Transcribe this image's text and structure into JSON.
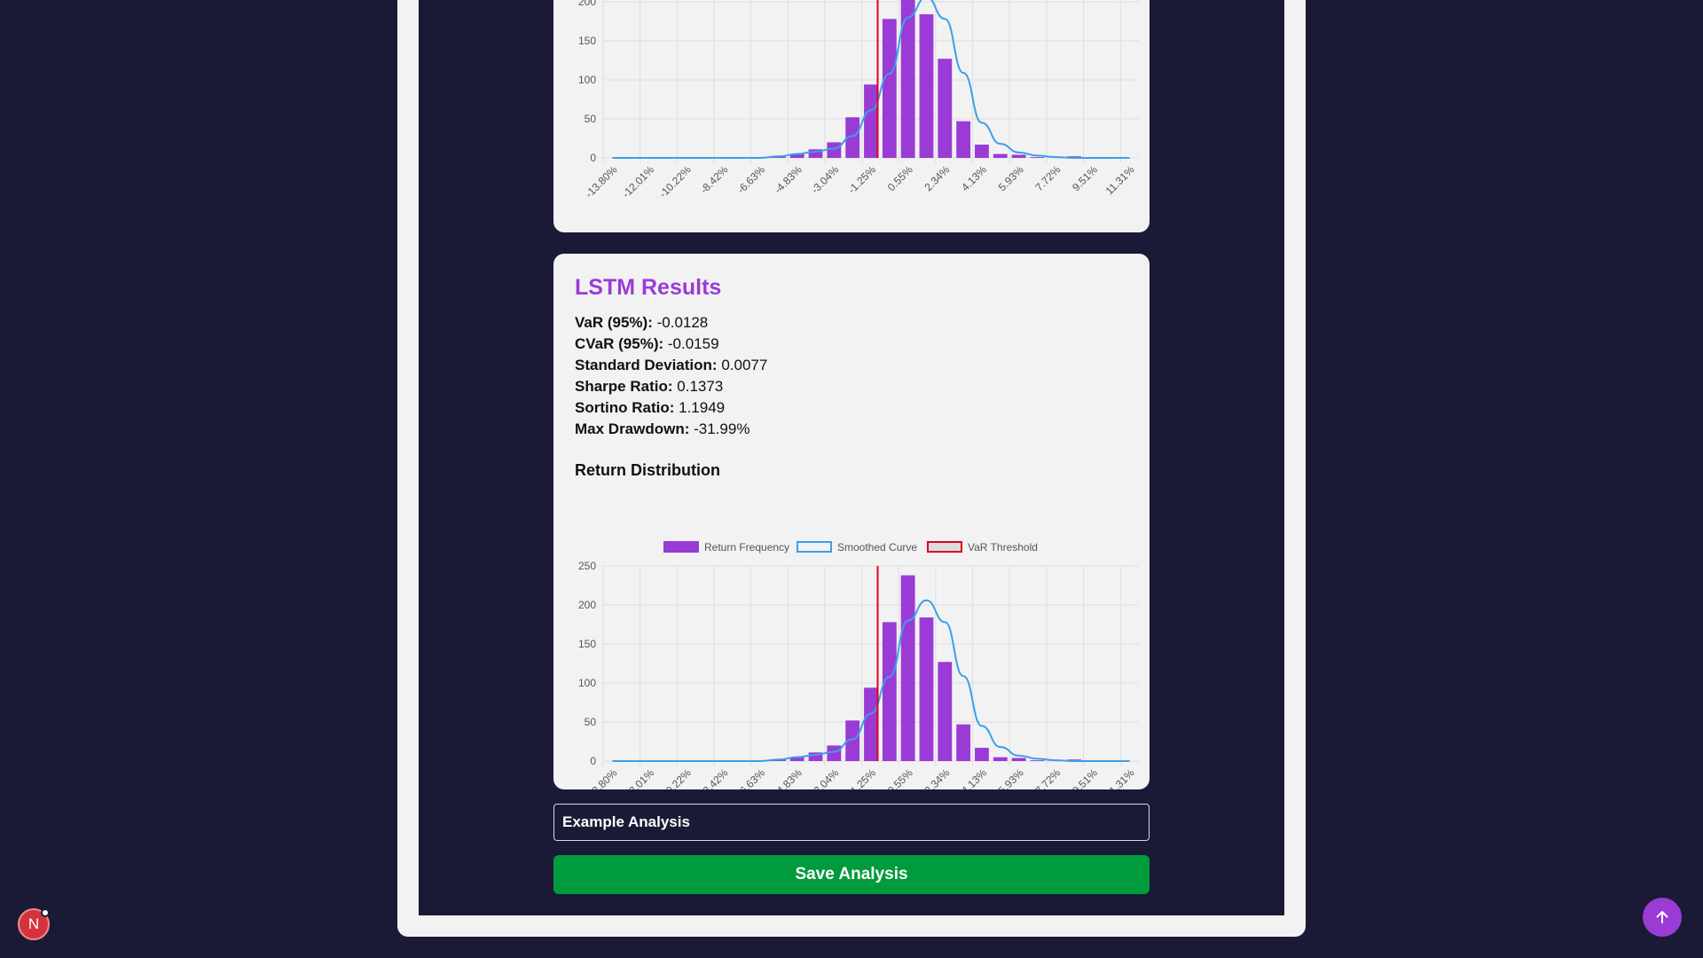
{
  "top_card": {
    "chart_ticks": {
      "y": [
        "200",
        "150",
        "100",
        "50",
        "0"
      ]
    }
  },
  "lstm": {
    "title": "LSTM Results",
    "metrics": [
      {
        "label": "VaR (95%):",
        "value": "-0.0128"
      },
      {
        "label": "CVaR (95%):",
        "value": "-0.0159"
      },
      {
        "label": "Standard Deviation:",
        "value": "0.0077"
      },
      {
        "label": "Sharpe Ratio:",
        "value": "0.1373"
      },
      {
        "label": "Sortino Ratio:",
        "value": "1.1949"
      },
      {
        "label": "Max Drawdown:",
        "value": "-31.99%"
      }
    ],
    "distribution_title": "Return Distribution"
  },
  "chart_data": [
    {
      "type": "bar",
      "categories": [
        "-13.80%",
        "-12.90%",
        "-12.01%",
        "-11.11%",
        "-10.22%",
        "-9.32%",
        "-8.42%",
        "-7.53%",
        "-6.63%",
        "-5.73%",
        "-4.83%",
        "-3.94%",
        "-3.04%",
        "-2.14%",
        "-1.25%",
        "-0.35%",
        "0.55%",
        "1.44%",
        "2.34%",
        "3.24%",
        "4.13%",
        "5.03%",
        "5.93%",
        "6.82%",
        "7.72%",
        "8.62%",
        "9.51%",
        "10.41%",
        "11.31%"
      ],
      "tick_labels": [
        "-13.80%",
        "-12.01%",
        "-10.22%",
        "-8.42%",
        "-6.63%",
        "-4.83%",
        "-3.04%",
        "-1.25%",
        "0.55%",
        "2.34%",
        "4.13%",
        "5.93%",
        "7.72%",
        "9.51%",
        "11.31%"
      ],
      "series": [
        {
          "name": "Return Frequency",
          "type": "bar",
          "values": [
            0,
            0,
            0,
            0,
            0,
            0,
            0,
            0,
            1,
            2,
            5,
            11,
            20,
            52,
            94,
            178,
            238,
            184,
            127,
            47,
            17,
            5,
            4,
            1,
            0,
            2,
            0,
            0,
            0
          ]
        },
        {
          "name": "Smoothed Curve",
          "type": "line",
          "values": [
            0,
            0,
            0,
            0,
            0,
            0,
            0,
            0,
            0,
            2,
            5,
            8,
            12,
            28,
            61,
            108,
            180,
            206,
            178,
            109,
            45,
            18,
            7,
            3,
            1,
            0,
            0,
            0,
            0
          ]
        }
      ],
      "var_threshold": "-1.28%",
      "ylim": [
        0,
        250
      ],
      "yticks": [
        0,
        50,
        100,
        150,
        200,
        250
      ],
      "legend_position": "top",
      "grid": true
    },
    {
      "type": "bar",
      "legend": [
        "Return Frequency",
        "Smoothed Curve",
        "VaR Threshold"
      ],
      "categories": [
        "-13.80%",
        "-12.90%",
        "-12.01%",
        "-11.11%",
        "-10.22%",
        "-9.32%",
        "-8.42%",
        "-7.53%",
        "-6.63%",
        "-5.73%",
        "-4.83%",
        "-3.94%",
        "-3.04%",
        "-2.14%",
        "-1.25%",
        "-0.35%",
        "0.55%",
        "1.44%",
        "2.34%",
        "3.24%",
        "4.13%",
        "5.03%",
        "5.93%",
        "6.82%",
        "7.72%",
        "8.62%",
        "9.51%",
        "10.41%",
        "11.31%"
      ],
      "tick_labels": [
        "-13.80%",
        "-12.01%",
        "-10.22%",
        "-8.42%",
        "-6.63%",
        "-4.83%",
        "-3.04%",
        "-1.25%",
        "0.55%",
        "2.34%",
        "4.13%",
        "5.93%",
        "7.72%",
        "9.51%",
        "11.31%"
      ],
      "series": [
        {
          "name": "Return Frequency",
          "type": "bar",
          "values": [
            0,
            0,
            0,
            0,
            0,
            0,
            0,
            0,
            1,
            2,
            5,
            11,
            20,
            52,
            94,
            178,
            238,
            184,
            127,
            47,
            17,
            5,
            4,
            1,
            0,
            2,
            0,
            0,
            0
          ]
        },
        {
          "name": "Smoothed Curve",
          "type": "line",
          "values": [
            0,
            0,
            0,
            0,
            0,
            0,
            0,
            0,
            0,
            2,
            5,
            8,
            12,
            28,
            61,
            108,
            180,
            206,
            178,
            109,
            45,
            18,
            7,
            3,
            1,
            0,
            0,
            0,
            0
          ]
        }
      ],
      "var_threshold": "-1.28%",
      "ylim": [
        0,
        250
      ],
      "yticks": [
        0,
        50,
        100,
        150,
        200,
        250
      ],
      "legend_position": "top",
      "grid": true
    }
  ],
  "save_form": {
    "name_value": "Example Analysis",
    "save_label": "Save Analysis"
  },
  "avatar": {
    "initial": "N"
  },
  "colors": {
    "bar": "#9a3bd6",
    "curve": "#3aa0e8",
    "var_line": "#e0001b",
    "grid": "#dedede",
    "save_button": "#009b3c",
    "title_accent": "#9a3bd6"
  },
  "icons": {
    "scroll_top": "arrow-up-icon"
  }
}
